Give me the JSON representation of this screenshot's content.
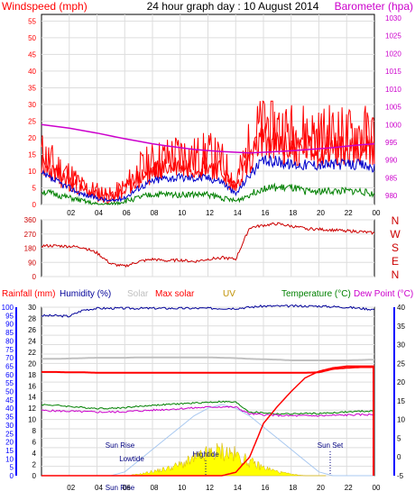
{
  "page": {
    "title": "24 hour graph day : 10 August 2014"
  },
  "colors": {
    "windspeed": "#ff0000",
    "gust": "#ff0000",
    "avg": "#0000cc",
    "min": "#008000",
    "barometer": "#cc00cc",
    "direction": "#cc0000",
    "humidity": "#000099",
    "solar": "#c0c0c0",
    "maxsolar": "#ff0000",
    "uv": "#c09000",
    "temperature": "#008000",
    "dewpoint": "#cc00cc",
    "rain": "#ff0000",
    "sunfill": "#ffff00",
    "maxsolarcurve": "#a8c8f0"
  },
  "x_ticks": [
    "02",
    "04",
    "06",
    "08",
    "10",
    "12",
    "14",
    "16",
    "18",
    "20",
    "22",
    "00"
  ],
  "wind_panel": {
    "left_label": "Windspeed (mph)",
    "right_label": "Barometer (hpa)",
    "left_ticks": [
      "0",
      "5",
      "10",
      "15",
      "20",
      "25",
      "30",
      "35",
      "40",
      "45",
      "50",
      "55"
    ],
    "right_ticks": [
      "980",
      "985",
      "990",
      "995",
      "1000",
      "1005",
      "1010",
      "1015",
      "1020",
      "1025",
      "1030"
    ]
  },
  "dir_panel": {
    "left_ticks": [
      "0",
      "90",
      "180",
      "270",
      "360"
    ],
    "right_letters": [
      "N",
      "W",
      "S",
      "E",
      "N"
    ]
  },
  "env_panel": {
    "headers": [
      "Rainfall (mm)",
      "Humidity (%)",
      "Solar",
      "Max solar",
      "UV",
      "Temperature (°C)",
      "Dew Point (°C)"
    ],
    "rain_ticks": [
      "0",
      "5",
      "10",
      "15",
      "20",
      "25",
      "30",
      "35",
      "40",
      "45",
      "50",
      "55",
      "60",
      "65",
      "70",
      "75",
      "80",
      "85",
      "90",
      "95",
      "100"
    ],
    "humidity_ticks": [
      "0",
      "2",
      "4",
      "6",
      "8",
      "10",
      "12",
      "14",
      "16",
      "18",
      "20",
      "22",
      "24",
      "26",
      "28",
      "30"
    ],
    "temp_ticks": [
      "-5",
      "0",
      "5",
      "10",
      "15",
      "20",
      "25",
      "30",
      "35",
      "40"
    ],
    "annotations": [
      "Sun Rise",
      "Lowtide",
      "Hightide",
      "Sun Set",
      "Sun Rise"
    ]
  },
  "chart_data": [
    {
      "type": "line",
      "title": "24 hour graph day : 10 August 2014",
      "ylabel": "Windspeed (mph)",
      "y2label": "Barometer (hpa)",
      "xlabel": "",
      "ylim": [
        0,
        55
      ],
      "y2lim": [
        980,
        1030
      ],
      "grid": true,
      "x": [
        0,
        1,
        2,
        3,
        4,
        5,
        6,
        7,
        8,
        9,
        10,
        11,
        12,
        13,
        14,
        15,
        16,
        17,
        18,
        19,
        20,
        21,
        22,
        23,
        24
      ],
      "series": [
        {
          "name": "Windspeed (mph)",
          "color": "#ff0000",
          "values": [
            12,
            9,
            7,
            4,
            3,
            2,
            4,
            8,
            10,
            11,
            12,
            11,
            12,
            10,
            5,
            14,
            20,
            18,
            17,
            17,
            16,
            17,
            16,
            17,
            16
          ]
        },
        {
          "values": [
            9,
            7,
            5,
            3,
            2,
            1,
            2,
            5,
            7,
            8,
            8,
            8,
            8,
            7,
            3,
            9,
            13,
            13,
            12,
            12,
            12,
            12,
            12,
            12,
            11
          ]
        },
        {
          "values": [
            4,
            3,
            2,
            1,
            0,
            0,
            1,
            2,
            3,
            3,
            3,
            3,
            3,
            2,
            1,
            3,
            5,
            5,
            5,
            4,
            4,
            4,
            4,
            4,
            3
          ]
        },
        {
          "name": "Barometer (hpa)",
          "axis": "right",
          "color": "#cc00cc",
          "values": [
            1000,
            999.5,
            999,
            998.3,
            997.6,
            996.8,
            996,
            995.3,
            994.6,
            994,
            993.5,
            993,
            992.7,
            992.4,
            992.2,
            992,
            992.2,
            992.4,
            992.6,
            992.9,
            993.2,
            993.5,
            993.9,
            994.3,
            994.6
          ]
        }
      ]
    },
    {
      "type": "line",
      "ylabel": "",
      "ylim": [
        0,
        360
      ],
      "grid": true,
      "x": [
        0,
        1,
        2,
        3,
        4,
        5,
        6,
        7,
        8,
        9,
        10,
        11,
        12,
        13,
        14,
        15,
        16,
        17,
        18,
        19,
        20,
        21,
        22,
        23,
        24
      ],
      "series": [
        {
          "values": [
            195,
            195,
            192,
            185,
            150,
            80,
            65,
            95,
            110,
            100,
            105,
            95,
            110,
            120,
            110,
            310,
            325,
            335,
            320,
            305,
            300,
            295,
            290,
            285,
            275
          ]
        }
      ]
    },
    {
      "type": "line",
      "ylim": [
        0,
        100
      ],
      "y2lim": [
        -5,
        40
      ],
      "grid": true,
      "x": [
        0,
        1,
        2,
        3,
        4,
        5,
        6,
        7,
        8,
        9,
        10,
        11,
        12,
        13,
        14,
        15,
        16,
        17,
        18,
        19,
        20,
        21,
        22,
        23,
        24
      ],
      "series": [
        {
          "name": "Rainfall (mm)",
          "axis": "rain",
          "color": "#ff0000",
          "values": [
            0,
            0,
            0,
            0,
            0,
            0,
            0,
            0,
            0,
            0,
            0,
            0,
            0,
            0,
            2,
            11,
            31,
            41,
            50,
            58,
            62,
            64,
            65,
            65,
            65
          ]
        },
        {
          "name": "Humidity (%)",
          "axis": "humidity",
          "color": "#000099",
          "values": [
            28.5,
            28.5,
            28.4,
            29.5,
            29.8,
            29.8,
            29.8,
            29.8,
            29.8,
            29.8,
            29.8,
            29.8,
            29.8,
            29.8,
            29.8,
            30.0,
            30.2,
            30.2,
            30.2,
            30.2,
            30.2,
            30.1,
            30.0,
            29.8,
            29.6
          ]
        },
        {
          "name": "Max solar",
          "color": "#ff0000",
          "values": [
            22.7,
            22.7,
            22.6,
            22.6,
            22.5,
            22.5,
            22.5,
            22.5,
            22.5,
            22.5,
            22.5,
            22.5,
            22.5,
            22.5,
            22.5,
            22.5,
            22.5,
            22.5,
            22.5,
            22.5,
            22.6,
            23.5,
            23.8,
            24.0,
            24.0
          ]
        },
        {
          "name": "Solar",
          "color": "#c0c0c0",
          "values": [
            26.2,
            26.2,
            26.3,
            26.4,
            26.5,
            26.5,
            26.5,
            26.6,
            26.6,
            26.6,
            26.6,
            26.6,
            26.6,
            26.5,
            26.4,
            26.2,
            26.1,
            26.0,
            25.8,
            25.8,
            25.8,
            25.8,
            25.8,
            25.9,
            26.0
          ]
        },
        {
          "name": "Temperature (°C)",
          "color": "#008000",
          "values": [
            14.0,
            13.8,
            13.5,
            13.2,
            13.0,
            13.0,
            13.2,
            13.5,
            13.8,
            14.0,
            14.2,
            14.4,
            14.6,
            14.8,
            14.6,
            12.0,
            11.8,
            11.5,
            11.5,
            11.6,
            11.6,
            11.8,
            12.0,
            12.2,
            12.2
          ]
        },
        {
          "name": "Dew Point (°C)",
          "color": "#cc00cc",
          "values": [
            12.4,
            12.3,
            12.2,
            12.1,
            12.0,
            12.0,
            12.1,
            12.3,
            12.5,
            12.7,
            12.9,
            13.1,
            13.3,
            13.4,
            13.3,
            11.5,
            11.3,
            11.1,
            11.0,
            11.0,
            11.0,
            11.1,
            11.2,
            11.3,
            11.3
          ]
        },
        {
          "name": "UV",
          "color": "#c09000",
          "values": [
            0,
            0,
            0,
            0,
            0,
            0,
            0,
            0.5,
            1.5,
            2.5,
            4,
            6,
            8,
            9,
            7.5,
            5,
            3,
            1.5,
            0.5,
            0,
            0,
            0,
            0,
            0,
            0
          ]
        },
        {
          "name": "Max solar curve",
          "color": "#a8c8f0",
          "values": [
            0,
            0,
            0,
            0,
            0,
            0,
            1,
            4,
            7,
            10,
            13,
            16,
            18,
            19,
            18,
            16,
            13,
            10,
            7,
            4,
            1,
            0,
            0,
            0,
            0
          ]
        }
      ]
    }
  ]
}
